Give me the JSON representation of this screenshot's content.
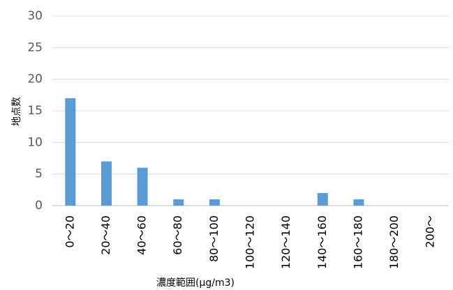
{
  "chart_data": {
    "type": "bar",
    "title": "",
    "xlabel": "濃度範囲(μg/m3)",
    "ylabel": "地点数",
    "categories": [
      "0～20",
      "20～40",
      "40～60",
      "60～80",
      "80～100",
      "100～120",
      "120～140",
      "140～160",
      "160～180",
      "180～200",
      "200～"
    ],
    "series": [
      {
        "values": [
          17,
          7,
          6,
          1,
          1,
          0,
          0,
          2,
          1,
          0,
          0
        ]
      }
    ],
    "ylim": [
      0,
      30
    ],
    "yticks": [
      0,
      5,
      10,
      15,
      20,
      25,
      30
    ],
    "grid": true,
    "legend": "none",
    "bar_color": "#5B9BD5",
    "grid_color": "#D9D9D9"
  }
}
